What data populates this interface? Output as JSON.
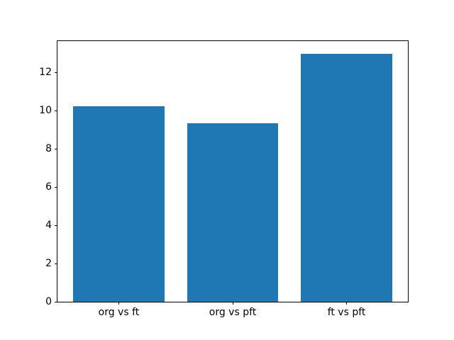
{
  "chart_data": {
    "type": "bar",
    "title": "",
    "xlabel": "",
    "ylabel": "",
    "categories": [
      "org vs ft",
      "org vs pft",
      "ft vs pft"
    ],
    "values": [
      10.25,
      9.35,
      13.0
    ],
    "yticks": [
      0,
      2,
      4,
      6,
      8,
      10,
      12
    ],
    "ylim": [
      0,
      13.65
    ],
    "grid": false,
    "legend": null,
    "bar_color": "#1f77b4",
    "layout": {
      "bar_centers_pct": [
        17.5,
        50.0,
        82.5
      ],
      "bar_width_pct": 26.0
    }
  },
  "colors": {
    "bar": "#1f77b4",
    "axis": "#000000",
    "background": "#ffffff",
    "text": "#000000"
  }
}
